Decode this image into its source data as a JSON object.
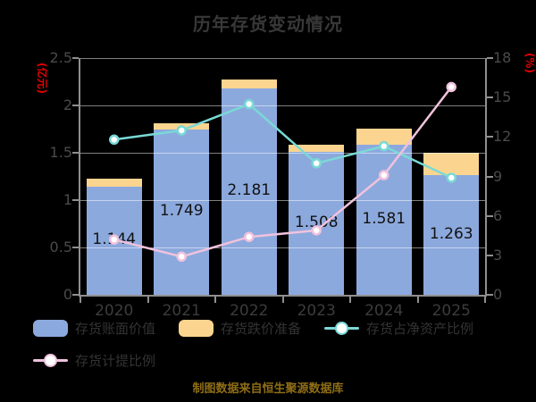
{
  "title": "历年存货变动情况",
  "footer": "制图数据来自恒生聚源数据库",
  "colors": {
    "background": "#000000",
    "bar_book_value": "#8ca9dd",
    "bar_provision": "#fbd58f",
    "line_net_asset_ratio": "#7ad9d6",
    "line_provision_ratio": "#f0c2dd",
    "axis_name_red": "#e60000",
    "axis_line_gray": "#8f8f8f",
    "tick_label_gray": "#4a4a4a",
    "title_gray": "#383838",
    "footer_gold": "#8f6e16",
    "bar_value_label": "#111111"
  },
  "chart_data": {
    "type": "bar",
    "combo": "stacked bars on left axis + two line series on right axis",
    "title": "历年存货变动情况",
    "categories": [
      "2020",
      "2021",
      "2022",
      "2023",
      "2024",
      "2025"
    ],
    "series": [
      {
        "name": "存货账面价值",
        "type": "bar",
        "axis": "left",
        "color": "#8ca9dd",
        "values": [
          1.144,
          1.749,
          2.181,
          1.508,
          1.581,
          1.263
        ],
        "value_labels": [
          "1.144",
          "1.749",
          "2.181",
          "1.508",
          "1.581",
          "1.263"
        ]
      },
      {
        "name": "存货跌价准备",
        "type": "bar",
        "axis": "left",
        "stacked_on": "存货账面价值",
        "color": "#fbd58f",
        "values": [
          0.08,
          0.06,
          0.09,
          0.08,
          0.17,
          0.24
        ]
      },
      {
        "name": "存货占净资产比例",
        "type": "line",
        "axis": "right",
        "color": "#7ad9d6",
        "marker": "white-filled circle",
        "values": [
          11.8,
          12.5,
          14.5,
          10.0,
          11.3,
          8.9
        ]
      },
      {
        "name": "存货计提比例",
        "type": "line",
        "axis": "right",
        "color": "#f0c2dd",
        "marker": "white-filled circle",
        "values": [
          4.2,
          2.9,
          4.4,
          4.9,
          9.1,
          15.8
        ]
      }
    ],
    "left_axis": {
      "name": "(亿元)",
      "min": 0,
      "max": 2.5,
      "tick_labels": [
        "0",
        "0.5",
        "1",
        "1.5",
        "2",
        "2.5"
      ]
    },
    "right_axis": {
      "name": "(%)",
      "min": 0,
      "max": 18,
      "tick_labels": [
        "0",
        "3",
        "6",
        "9",
        "12",
        "15",
        "18"
      ]
    },
    "grid": true,
    "legend_position": "bottom-left, two rows"
  }
}
